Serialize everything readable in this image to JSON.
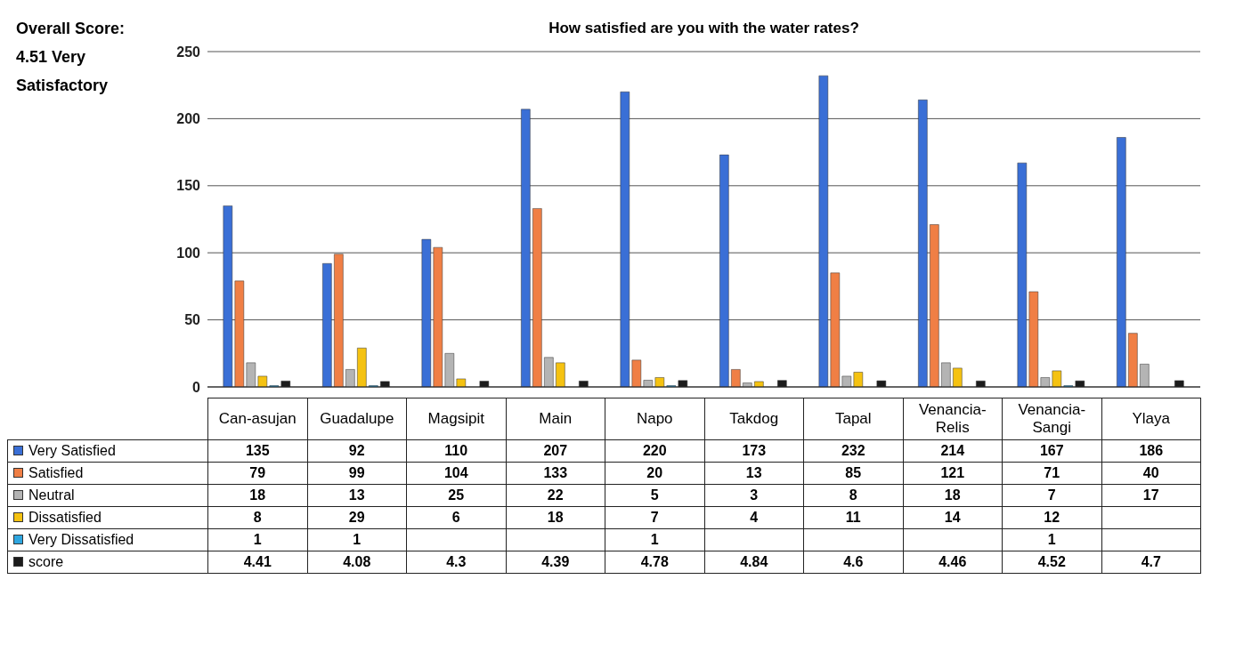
{
  "chart_data": {
    "type": "bar",
    "title": "How satisfied are you with the water rates?",
    "annotations": [
      "Overall Score: 4.51 Very Satisfactory"
    ],
    "categories": [
      "Can-asujan",
      "Guadalupe",
      "Magsipit",
      "Main",
      "Napo",
      "Takdog",
      "Tapal",
      "Venancia-Relis",
      "Venancia-Sangi",
      "Ylaya"
    ],
    "series": [
      {
        "name": "Very Satisfied",
        "color": "#3a6fd6",
        "values": [
          135,
          92,
          110,
          207,
          220,
          173,
          232,
          214,
          167,
          186
        ]
      },
      {
        "name": "Satisfied",
        "color": "#f07f45",
        "values": [
          79,
          99,
          104,
          133,
          20,
          13,
          85,
          121,
          71,
          40
        ]
      },
      {
        "name": "Neutral",
        "color": "#b4b4b4",
        "values": [
          18,
          13,
          25,
          22,
          5,
          3,
          8,
          18,
          7,
          17
        ]
      },
      {
        "name": "Dissatisfied",
        "color": "#f5c211",
        "values": [
          8,
          29,
          6,
          18,
          7,
          4,
          11,
          14,
          12,
          null
        ]
      },
      {
        "name": "Very Dissatisfied",
        "color": "#2ea6e0",
        "values": [
          1,
          1,
          null,
          null,
          1,
          null,
          null,
          null,
          1,
          null
        ]
      },
      {
        "name": "score",
        "color": "#1c1c1c",
        "values": [
          4.41,
          4.08,
          4.3,
          4.39,
          4.78,
          4.84,
          4.6,
          4.46,
          4.52,
          4.7
        ]
      }
    ],
    "ylim": [
      0,
      250
    ],
    "yticks": [
      0,
      50,
      100,
      150,
      200,
      250
    ],
    "grid": "y",
    "legend": "bottom",
    "data_labels": true
  }
}
